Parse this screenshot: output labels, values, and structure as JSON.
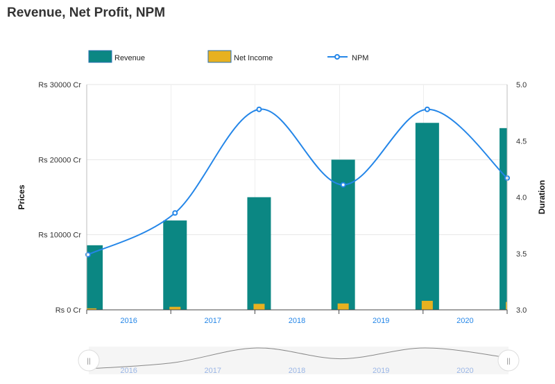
{
  "page": {
    "title": "Revenue, Net Profit, NPM"
  },
  "chart_data": {
    "type": "bar",
    "title": "Revenue, Net Profit, NPM",
    "x": [
      2015.55,
      2016.55,
      2017.55,
      2018.55,
      2019.55,
      2020.55
    ],
    "x_ticks": [
      "2016",
      "2017",
      "2018",
      "2019",
      "2020"
    ],
    "xlim": [
      2015.5,
      2020.5
    ],
    "ylabel": "Prices",
    "y2label": "Duration",
    "ylim": [
      0,
      30000
    ],
    "y2lim": [
      3.0,
      5.0
    ],
    "y_ticks": [
      "Rs 0 Cr",
      "Rs 10000 Cr",
      "Rs 20000 Cr",
      "Rs 30000 Cr"
    ],
    "y_tick_values": [
      0,
      10000,
      20000,
      30000
    ],
    "y2_ticks": [
      "3.0",
      "3.5",
      "4.0",
      "4.5",
      "5.0"
    ],
    "y2_tick_values": [
      3.0,
      3.5,
      4.0,
      4.5,
      5.0
    ],
    "grid": true,
    "legend_position": "top",
    "series": [
      {
        "name": "Revenue",
        "type": "bar",
        "color": "#0b8783",
        "values": [
          8600,
          11900,
          15000,
          20000,
          24900,
          24200
        ]
      },
      {
        "name": "Net Income",
        "type": "bar",
        "color": "#e7b120",
        "values": [
          200,
          400,
          800,
          850,
          1200,
          1050
        ]
      },
      {
        "name": "NPM",
        "type": "line",
        "axis": "y2",
        "color": "#2486e8",
        "values": [
          3.49,
          3.86,
          4.78,
          4.11,
          4.78,
          4.17
        ]
      }
    ],
    "navigator": {
      "start": "2016",
      "end": "2020",
      "handle_glyph": "||"
    }
  }
}
